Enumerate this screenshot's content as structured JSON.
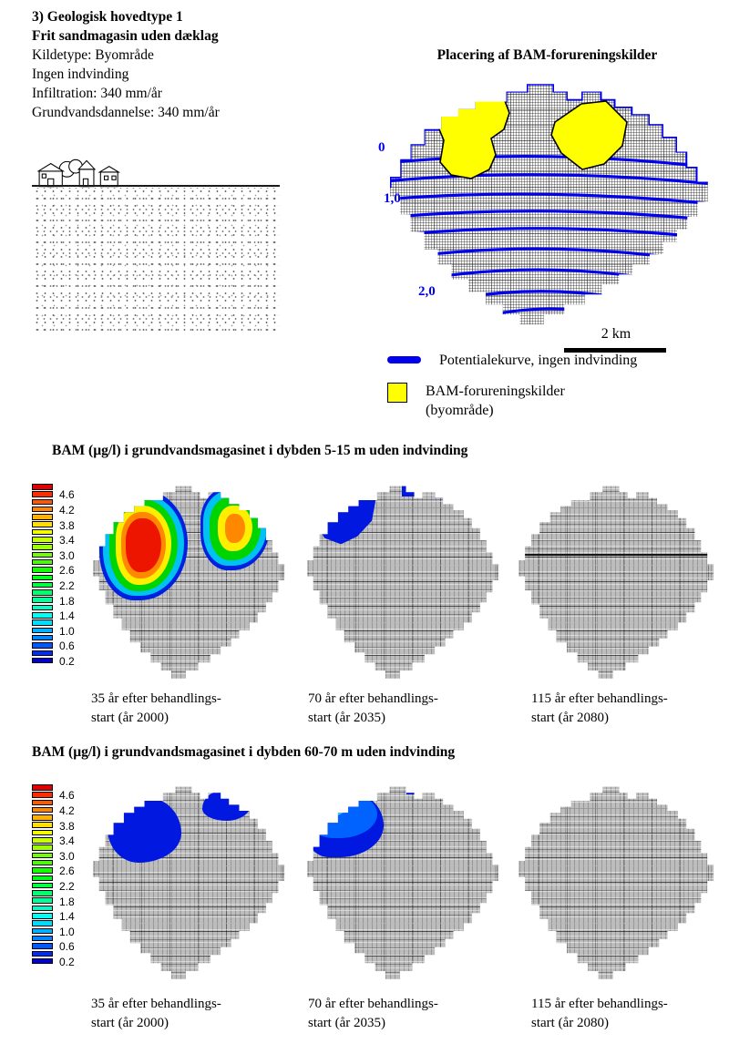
{
  "header": {
    "line1": "3) Geologisk hovedtype 1",
    "line2": "Frit sandmagasin uden dæklag",
    "line3": "Kildetype: Byområde",
    "line4": "Ingen indvinding",
    "line5": "Infiltration: 340 mm/år",
    "line6": "Grundvandsdannelse: 340 mm/år"
  },
  "source_map": {
    "title": "Placering af BAM-forureningskilder",
    "contour_labels": {
      "c0": "0",
      "c1": "1,0",
      "c2": "2,0"
    },
    "scale_label": "2 km"
  },
  "legend": {
    "potential": "Potentialekurve, ingen indvinding",
    "sources": "BAM-forureningskilder\n(byområde)"
  },
  "sections": {
    "s1": {
      "heading": "BAM (µg/l) i grundvandsmagasinet i dybden 5-15 m uden indvinding",
      "captions": {
        "c1": "35 år efter behandlings-\nstart (år 2000)",
        "c2": "70 år efter behandlings-\nstart (år 2035)",
        "c3": "115 år efter behandlings-\nstart (år 2080)"
      }
    },
    "s2": {
      "heading": "BAM (µg/l) i grundvandsmagasinet i dybden 60-70 m uden indvinding",
      "captions": {
        "c1": "35 år efter behandlings-\nstart (år 2000)",
        "c2": "70 år efter behandlings-\nstart (år 2035)",
        "c3": "115 år efter behandlings-\nstart (år 2080)"
      }
    }
  },
  "colorbar": {
    "labels": [
      "4.6",
      "4.2",
      "3.8",
      "3.4",
      "3.0",
      "2.6",
      "2.2",
      "1.8",
      "1.4",
      "1.0",
      "0.6",
      "0.2"
    ],
    "cell_colors": [
      "#e00000",
      "#ff2c00",
      "#ff5900",
      "#ff8500",
      "#ffb100",
      "#ffde00",
      "#f4ff00",
      "#c8ff00",
      "#9bff00",
      "#6fff00",
      "#43ff00",
      "#16ff00",
      "#00ff16",
      "#00ff43",
      "#00ff6f",
      "#00ff9b",
      "#00ffc8",
      "#00fff4",
      "#00deff",
      "#00b1ff",
      "#0085ff",
      "#0059ff",
      "#002cff",
      "#0000d8"
    ]
  },
  "colors": {
    "contour_blue": "#0000ee",
    "source_yellow": "#ffff00",
    "plume_blue": "#0018e0",
    "plume_mid_blue": "#0063ff",
    "plume_light_blue": "#4cc8f8",
    "ring_blue": "#0020e0",
    "ring_cyan": "#00c2f0",
    "ring_green": "#00d400",
    "ring_yellow": "#ffee00",
    "ring_orange": "#ff8800",
    "ring_red": "#ee1500",
    "ring_deep_orange": "#ff6600"
  },
  "chart_data": [
    {
      "type": "heatmap",
      "title": "BAM (µg/l) i grundvandsmagasinet i dybden 5-15 m uden indvinding",
      "colorbar": {
        "ticks": [
          4.6,
          4.2,
          3.8,
          3.4,
          3.0,
          2.6,
          2.2,
          1.8,
          1.4,
          1.0,
          0.6,
          0.2
        ],
        "range": [
          0.2,
          4.8
        ],
        "step": 0.2,
        "orientation": "vertical",
        "colormap": "rainbow, red = high BAM, blue = low BAM"
      },
      "panels": [
        {
          "label": "35 år efter behandlings-start (år 2000)",
          "observation": "Two large plumes in the northern part: western plume with red core > 4.6 µg/l, eastern plume with orange core ~ 3.8-4.2 µg/l, both rimmed green-cyan-blue down to 0.2 µg/l"
        },
        {
          "label": "70 år efter behandlings-start (år 2035)",
          "observation": "Only a small residual blue plume (≤ 0.6 µg/l) at the north-western edge plus tiny blue spots along the northern boundary"
        },
        {
          "label": "115 år efter behandlings-start (år 2080)",
          "observation": "No BAM above 0.2 µg/l anywhere in the aquifer"
        }
      ]
    },
    {
      "type": "heatmap",
      "title": "BAM (µg/l) i grundvandsmagasinet i dybden 60-70 m uden indvinding",
      "colorbar": {
        "ticks": [
          4.6,
          4.2,
          3.8,
          3.4,
          3.0,
          2.6,
          2.2,
          1.8,
          1.4,
          1.0,
          0.6,
          0.2
        ],
        "range": [
          0.2,
          4.8
        ],
        "step": 0.2,
        "orientation": "vertical",
        "colormap": "rainbow, red = high BAM, blue = low BAM"
      },
      "panels": [
        {
          "label": "35 år efter behandlings-start (år 2000)",
          "observation": "Blue plume (≤ 0.6 µg/l) in the north-west and a smaller blue patch in the north-east"
        },
        {
          "label": "70 år efter behandlings-start (år 2035)",
          "observation": "North-western plume with light-blue core ~ 1.0-1.4 µg/l grading to dark blue 0.2 µg/l; tiny blue spots on the northern boundary"
        },
        {
          "label": "115 år efter behandlings-start (år 2080)",
          "observation": "Only a single tiny blue spot (≈ 0.2 µg/l) at the north-western edge"
        }
      ]
    }
  ],
  "source_map_notes": {
    "hatched_area": "model area (regneark-grid)",
    "contours": "potential contours in metres, values 0 to 2,0 increasing towards south"
  }
}
